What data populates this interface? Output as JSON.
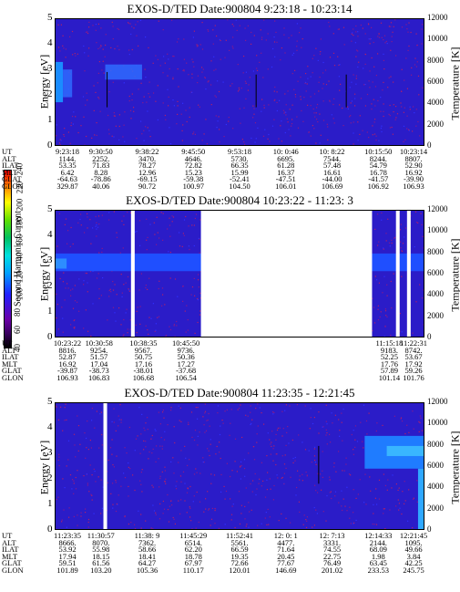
{
  "colorbar": {
    "label": "Second Harmonic Current",
    "ticks": [
      "40",
      "60",
      "80",
      "100",
      "120",
      "140",
      "160",
      "180",
      "200",
      "220",
      "240"
    ]
  },
  "chart_data": [
    {
      "type": "heatmap",
      "title": "EXOS-D/TED   Date:900804  9:23:18 - 10:23:14",
      "ylabel": "Energy [eV]",
      "y2label": "Temperature [K]",
      "ylim": [
        0,
        5
      ],
      "y2lim": [
        0,
        12000
      ],
      "yticks": [
        "0",
        "1",
        "2",
        "3",
        "4",
        "5"
      ],
      "y2ticks": [
        "0",
        "2000",
        "4000",
        "6000",
        "8000",
        "10000",
        "12000"
      ],
      "rows": [
        {
          "label": "UT",
          "values": [
            "9:23:18",
            "9:30:50",
            "9:38:22",
            "9:45:50",
            "9:53:18",
            "10: 0:46",
            "10: 8:22",
            "10:15:50",
            "10:23:14"
          ]
        },
        {
          "label": "ALT",
          "values": [
            "1144.",
            "2252.",
            "3470.",
            "4646.",
            "5730.",
            "6695.",
            "7544.",
            "8244.",
            "8807."
          ]
        },
        {
          "label": "ILAT",
          "values": [
            "53.35",
            "71.83",
            "78.27",
            "72.82",
            "66.35",
            "61.28",
            "57.48",
            "54.79",
            "52.90"
          ]
        },
        {
          "label": "MLT",
          "values": [
            "6.42",
            "8.28",
            "12.96",
            "15.23",
            "15.99",
            "16.37",
            "16.61",
            "16.78",
            "16.92"
          ]
        },
        {
          "label": "GLAT",
          "values": [
            "-64.63",
            "-78.86",
            "-69.15",
            "-59.38",
            "-52.41",
            "-47.51",
            "-44.00",
            "-41.57",
            "-39.90"
          ]
        },
        {
          "label": "GLON",
          "values": [
            "329.87",
            "40.06",
            "90.72",
            "100.97",
            "104.50",
            "106.01",
            "106.69",
            "106.92",
            "106.93"
          ]
        }
      ],
      "temperature_profiles": [
        {
          "x": 0.14,
          "y_from": 1.5,
          "y_to": 2.9
        },
        {
          "x": 0.545,
          "y_from": 1.5,
          "y_to": 2.8
        },
        {
          "x": 0.79,
          "y_from": 1.5,
          "y_to": 2.8
        }
      ]
    },
    {
      "type": "heatmap",
      "title": "EXOS-D/TED   Date:900804  10:23:22 - 11:23: 3",
      "ylabel": "Energy [eV]",
      "y2label": "Temperature [K]",
      "ylim": [
        0,
        5
      ],
      "y2lim": [
        0,
        12000
      ],
      "yticks": [
        "0",
        "1",
        "2",
        "3",
        "4",
        "5"
      ],
      "y2ticks": [
        "0",
        "2000",
        "4000",
        "6000",
        "8000",
        "10000",
        "12000"
      ],
      "data_gaps": [
        [
          0.205,
          0.215
        ],
        [
          0.395,
          0.86
        ],
        [
          0.925,
          0.935
        ],
        [
          0.955,
          0.965
        ]
      ],
      "rows": [
        {
          "label": "UT",
          "values": [
            "10:23:22",
            "10:30:58",
            "10:38:35",
            "10:45:50",
            "11:15:18",
            "11:22:31"
          ]
        },
        {
          "label": "ALT",
          "values": [
            "8816.",
            "9254.",
            "9567.",
            "9736.",
            "9183.",
            "8742."
          ]
        },
        {
          "label": "ILAT",
          "values": [
            "52.87",
            "51.57",
            "50.75",
            "50.36",
            "52.25",
            "53.67"
          ]
        },
        {
          "label": "MLT",
          "values": [
            "16.92",
            "17.04",
            "17.16",
            "17.27",
            "17.76",
            "17.92"
          ]
        },
        {
          "label": "GLAT",
          "values": [
            "-39.87",
            "-38.73",
            "-38.01",
            "-37.68",
            "57.89",
            "59.26"
          ]
        },
        {
          "label": "GLON",
          "values": [
            "106.93",
            "106.83",
            "106.68",
            "106.54",
            "101.14",
            "101.76"
          ]
        }
      ]
    },
    {
      "type": "heatmap",
      "title": "EXOS-D/TED   Date:900804  11:23:35 - 12:21:45",
      "ylabel": "Energy [eV]",
      "y2label": "Temperature [K]",
      "ylim": [
        0,
        5
      ],
      "y2lim": [
        0,
        12000
      ],
      "yticks": [
        "0",
        "1",
        "2",
        "3",
        "4",
        "5"
      ],
      "y2ticks": [
        "0",
        "2000",
        "4000",
        "6000",
        "8000",
        "10000",
        "12000"
      ],
      "data_gaps": [
        [
          0.13,
          0.14
        ]
      ],
      "rows": [
        {
          "label": "UT",
          "values": [
            "11:23:35",
            "11:30:57",
            "11:38: 9",
            "11:45:29",
            "11:52:41",
            "12: 0: 1",
            "12: 7:13",
            "12:14:33",
            "12:21:45"
          ]
        },
        {
          "label": "ALT",
          "values": [
            "8666.",
            "8070.",
            "7362.",
            "6514.",
            "5561.",
            "4477.",
            "3331.",
            "2144.",
            "1095."
          ]
        },
        {
          "label": "ILAT",
          "values": [
            "53.92",
            "55.98",
            "58.66",
            "62.20",
            "66.59",
            "71.64",
            "74.55",
            "68.09",
            "49.66"
          ]
        },
        {
          "label": "MLT",
          "values": [
            "17.94",
            "18.15",
            "18.41",
            "18.78",
            "19.35",
            "20.45",
            "22.75",
            "1.98",
            "3.84"
          ]
        },
        {
          "label": "GLAT",
          "values": [
            "59.51",
            "61.56",
            "64.27",
            "67.97",
            "72.66",
            "77.67",
            "76.49",
            "63.45",
            "42.25"
          ]
        },
        {
          "label": "GLON",
          "values": [
            "101.89",
            "103.20",
            "105.36",
            "110.17",
            "120.01",
            "146.69",
            "201.02",
            "233.53",
            "245.75"
          ]
        }
      ],
      "temperature_profiles": [
        {
          "x": 0.715,
          "y_from": 1.8,
          "y_to": 3.3
        }
      ]
    }
  ]
}
